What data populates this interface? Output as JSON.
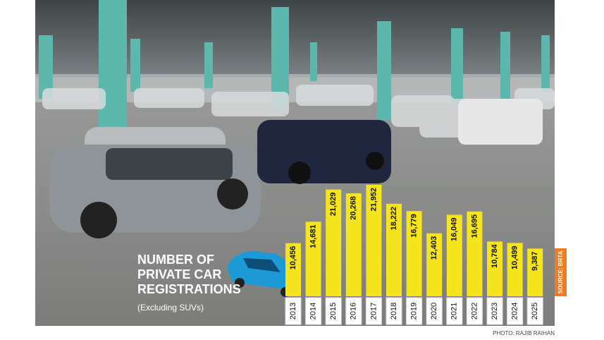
{
  "chart_data": {
    "type": "bar",
    "title": [
      "NUMBER OF",
      "PRIVATE CAR",
      "REGISTRATIONS"
    ],
    "subtitle": "(Excluding SUVs)",
    "categories": [
      "2013",
      "2014",
      "2015",
      "2016",
      "2017",
      "2018",
      "2019",
      "2020",
      "2021",
      "2022",
      "2023",
      "2024",
      "2025"
    ],
    "values": [
      10456,
      14681,
      21029,
      20268,
      21952,
      18222,
      16779,
      12403,
      16049,
      16695,
      10784,
      10499,
      9387
    ],
    "value_labels": [
      "10,456",
      "14,681",
      "21,029",
      "20,268",
      "21,952",
      "18,222",
      "16,779",
      "12,403",
      "16,049",
      "16,695",
      "10,784",
      "10,499",
      "9,387"
    ],
    "color": "#f6e41c",
    "source": "SOURCE: BRTA",
    "photo_credit": "PHOTO: RAJIB RAIHAN"
  }
}
